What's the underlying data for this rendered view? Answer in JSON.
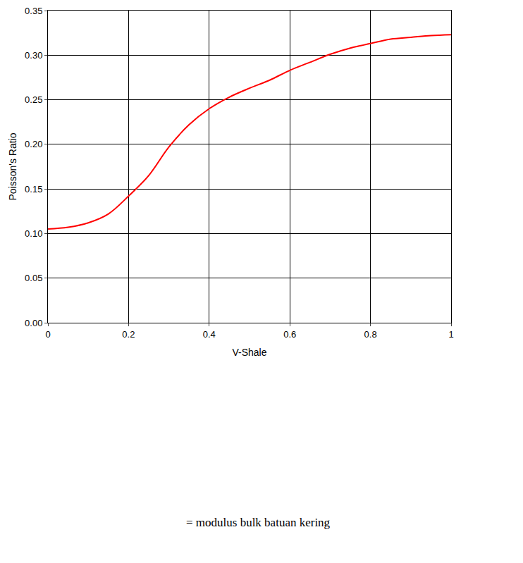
{
  "chart_data": {
    "type": "line",
    "x_label": "V-Shale",
    "y_label": "Poisson's Ratio",
    "annotations": [
      "= modulus bulk batuan kering"
    ],
    "x": [
      0,
      0.05,
      0.1,
      0.15,
      0.2,
      0.25,
      0.3,
      0.35,
      0.4,
      0.45,
      0.5,
      0.55,
      0.6,
      0.65,
      0.7,
      0.75,
      0.8,
      0.85,
      0.9,
      0.95,
      1.0
    ],
    "values": [
      0.105,
      0.107,
      0.112,
      0.122,
      0.142,
      0.165,
      0.197,
      0.222,
      0.24,
      0.253,
      0.263,
      0.272,
      0.283,
      0.292,
      0.301,
      0.308,
      0.313,
      0.318,
      0.32,
      0.322,
      0.323
    ],
    "color": "#ff0000",
    "xlim": [
      0,
      1
    ],
    "xticks": [
      0,
      0.2,
      0.4,
      0.6,
      0.8,
      1
    ],
    "ylim": [
      0,
      0.35
    ],
    "yticks": [
      {
        "value": 0,
        "label": "0.00"
      },
      {
        "value": 0.05,
        "label": "0.05"
      },
      {
        "value": 0.1,
        "label": "0.10"
      },
      {
        "value": 0.15,
        "label": "0.15"
      },
      {
        "value": 0.2,
        "label": "0.20"
      },
      {
        "value": 0.25,
        "label": "0.25"
      },
      {
        "value": 0.3,
        "label": "0.30"
      },
      {
        "value": 0.35,
        "label": "0.35"
      }
    ],
    "grid": true
  }
}
